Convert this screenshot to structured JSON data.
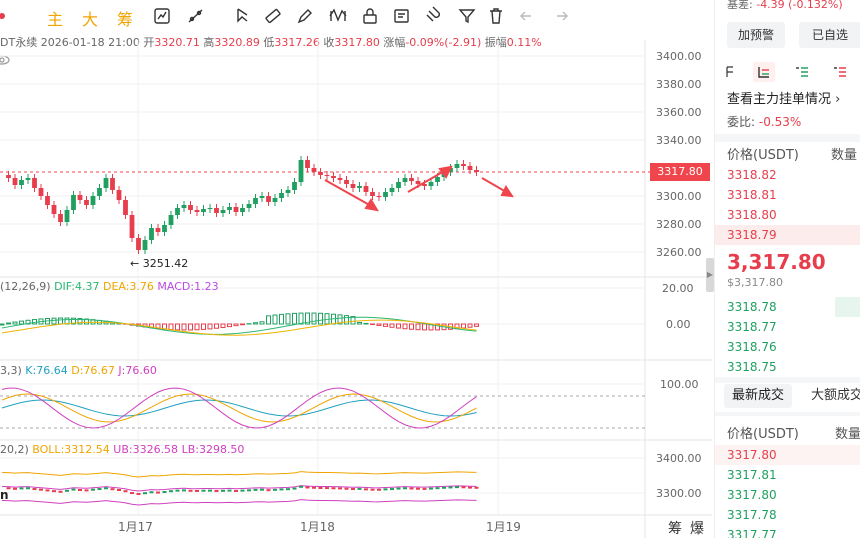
{
  "toolbar": {
    "mode_buttons": [
      "主",
      "大",
      "筹"
    ],
    "tools": [
      "indicator-icon",
      "line-tool-icon",
      "cursor-icon",
      "ruler-icon",
      "pen-icon",
      "pattern-icon",
      "lock-icon",
      "note-icon",
      "magnet-icon",
      "filter-icon",
      "trash-icon",
      "undo-icon",
      "redo-icon"
    ]
  },
  "ohlc": {
    "symbol_fragment": "DT永续",
    "datetime": "2026-01-18 21:00",
    "open_label": "开",
    "open": "3320.71",
    "high_label": "高",
    "high": "3320.89",
    "low_label": "低",
    "low": "3317.26",
    "close_label": "收",
    "close": "3317.80",
    "change_label": "涨幅",
    "change": "-0.09%(-2.91)",
    "amp_label": "振幅",
    "amp": "0.11%"
  },
  "price_axis": {
    "main": [
      "3400.00",
      "3380.00",
      "3360.00",
      "3340.00",
      "3300.00",
      "3280.00",
      "3260.00"
    ],
    "current": "3317.80",
    "macd": [
      "20.00",
      "0.00"
    ],
    "kdj": [
      "100.00"
    ],
    "boll": [
      "3400.00",
      "3300.00"
    ]
  },
  "main_chart": {
    "low_marker": "← 3251.42"
  },
  "macd": {
    "label": "(12,26,9)",
    "dif": "DIF:4.37",
    "dea": "DEA:3.76",
    "macd": "MACD:1.23"
  },
  "kdj": {
    "label": "3,3)",
    "k": "K:76.64",
    "d": "D:76.67",
    "j": "J:76.60"
  },
  "boll": {
    "label": "20,2)",
    "boll": "BOLL:3312.54",
    "ub": "UB:3326.58",
    "lb": "LB:3298.50",
    "cut_text": "n"
  },
  "time_axis": [
    "1月17",
    "1月18",
    "1月19"
  ],
  "bottom_right": [
    "筹",
    "爆"
  ],
  "side_panel": {
    "basis_label": "基差:",
    "basis_value": "-4.39 (-0.132%)",
    "alert_button": "加预警",
    "watch_button": "已自选",
    "orderbook_link": "查看主力挂单情况",
    "ratio_label": "委比:",
    "ratio_value": "-0.53%",
    "price_header": "价格(USDT)",
    "qty_header": "数量",
    "asks": [
      "3318.82",
      "3318.81",
      "3318.80",
      "3318.79"
    ],
    "last_price": "3,317.80",
    "last_price_usd": "$3,317.80",
    "bids": [
      "3318.78",
      "3318.77",
      "3318.76",
      "3318.75"
    ],
    "trade_tabs": [
      "最新成交",
      "大额成交"
    ],
    "trades": [
      "3317.80",
      "3317.81",
      "3317.80",
      "3317.78",
      "3317.77"
    ]
  },
  "colors": {
    "up": "#20a060",
    "down": "#e63e4c",
    "accent": "#f0a400",
    "dif": "#2bb673",
    "dea": "#f0b400",
    "macd_text": "#b84ce0"
  }
}
